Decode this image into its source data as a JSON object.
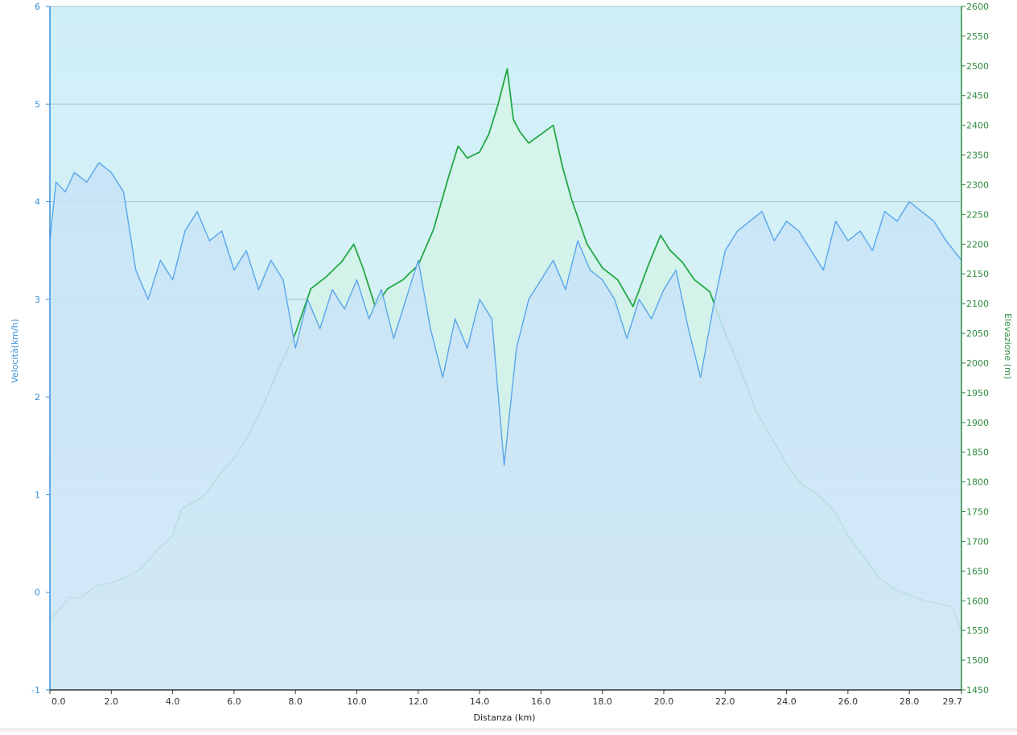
{
  "chart_data": {
    "type": "line",
    "xlabel": "Distanza  (km)",
    "ylabel_left": "Velocità(km/h)",
    "ylabel_right": "Elevazione (m)",
    "xlim": [
      0,
      29.7
    ],
    "ylim_left": [
      -1,
      6
    ],
    "ylim_right": [
      1450,
      2600
    ],
    "x_ticks": [
      "0.0",
      "2.0",
      "4.0",
      "6.0",
      "8.0",
      "10.0",
      "12.0",
      "14.0",
      "16.0",
      "18.0",
      "20.0",
      "22.0",
      "24.0",
      "26.0",
      "28.0",
      "29.7"
    ],
    "y_left_ticks": [
      -1,
      0,
      1,
      2,
      3,
      4,
      5,
      6
    ],
    "y_right_ticks": [
      1450,
      1500,
      1550,
      1600,
      1650,
      1700,
      1750,
      1800,
      1850,
      1900,
      1950,
      2000,
      2050,
      2100,
      2150,
      2200,
      2250,
      2300,
      2350,
      2400,
      2450,
      2500,
      2550,
      2600
    ],
    "grid": "horizontal",
    "colors": {
      "speed": "#5aa5ea",
      "elevation": "#22a845",
      "speed_fill": "#cbe5f7",
      "elevation_fill": "#c9efe3",
      "plot_bg_top": "#d2f0f8",
      "plot_bg_bottom": "#daf2f2"
    },
    "series": [
      {
        "axis": "right",
        "x": [
          0,
          0.3,
          0.6,
          1.0,
          1.5,
          2.0,
          2.5,
          3.0,
          3.5,
          4.0,
          4.3,
          5.0,
          5.5,
          6.0,
          6.5,
          7.0,
          7.5,
          8.0,
          8.5,
          9.0,
          9.5,
          9.9,
          10.2,
          10.6,
          11.0,
          11.5,
          12.0,
          12.5,
          13.0,
          13.3,
          13.6,
          14.0,
          14.3,
          14.6,
          14.9,
          15.1,
          15.3,
          15.6,
          16.0,
          16.4,
          16.7,
          17.0,
          17.5,
          18.0,
          18.5,
          19.0,
          19.5,
          19.9,
          20.2,
          20.6,
          21.0,
          21.5,
          22.0,
          22.5,
          23.0,
          23.5,
          24.0,
          24.5,
          25.0,
          25.5,
          26.0,
          26.5,
          27.0,
          27.5,
          28.0,
          28.5,
          29.0,
          29.4,
          29.7
        ],
        "values": [
          1565,
          1585,
          1605,
          1605,
          1625,
          1630,
          1640,
          1655,
          1685,
          1710,
          1755,
          1775,
          1810,
          1840,
          1880,
          1935,
          1995,
          2050,
          2125,
          2145,
          2170,
          2200,
          2160,
          2095,
          2125,
          2140,
          2165,
          2225,
          2315,
          2365,
          2345,
          2355,
          2385,
          2435,
          2495,
          2410,
          2390,
          2370,
          2385,
          2400,
          2330,
          2275,
          2200,
          2160,
          2140,
          2095,
          2165,
          2215,
          2190,
          2170,
          2140,
          2120,
          2050,
          1990,
          1920,
          1875,
          1830,
          1795,
          1780,
          1755,
          1710,
          1675,
          1640,
          1620,
          1610,
          1600,
          1595,
          1590,
          1550
        ]
      },
      {
        "axis": "left",
        "x": [
          0,
          0.2,
          0.5,
          0.8,
          1.2,
          1.6,
          2.0,
          2.4,
          2.8,
          3.2,
          3.6,
          4.0,
          4.4,
          4.8,
          5.2,
          5.6,
          6.0,
          6.4,
          6.8,
          7.2,
          7.6,
          8.0,
          8.4,
          8.8,
          9.2,
          9.6,
          10.0,
          10.4,
          10.8,
          11.2,
          11.6,
          12.0,
          12.4,
          12.8,
          13.2,
          13.6,
          14.0,
          14.4,
          14.8,
          15.2,
          15.6,
          16.0,
          16.4,
          16.8,
          17.2,
          17.6,
          18.0,
          18.4,
          18.8,
          19.2,
          19.6,
          20.0,
          20.4,
          20.8,
          21.2,
          21.6,
          22.0,
          22.4,
          22.8,
          23.2,
          23.6,
          24.0,
          24.4,
          24.8,
          25.2,
          25.6,
          26.0,
          26.4,
          26.8,
          27.2,
          27.6,
          28.0,
          28.4,
          28.8,
          29.2,
          29.7
        ],
        "values": [
          3.6,
          4.2,
          4.1,
          4.3,
          4.2,
          4.4,
          4.3,
          4.1,
          3.3,
          3.0,
          3.4,
          3.2,
          3.7,
          3.9,
          3.6,
          3.7,
          3.3,
          3.5,
          3.1,
          3.4,
          3.2,
          2.5,
          3.0,
          2.7,
          3.1,
          2.9,
          3.2,
          2.8,
          3.1,
          2.6,
          3.0,
          3.4,
          2.7,
          2.2,
          2.8,
          2.5,
          3.0,
          2.8,
          1.3,
          2.5,
          3.0,
          3.2,
          3.4,
          3.1,
          3.6,
          3.3,
          3.2,
          3.0,
          2.6,
          3.0,
          2.8,
          3.1,
          3.3,
          2.7,
          2.2,
          2.9,
          3.5,
          3.7,
          3.8,
          3.9,
          3.6,
          3.8,
          3.7,
          3.5,
          3.3,
          3.8,
          3.6,
          3.7,
          3.5,
          3.9,
          3.8,
          4.0,
          3.9,
          3.8,
          3.6,
          3.4
        ]
      }
    ]
  }
}
